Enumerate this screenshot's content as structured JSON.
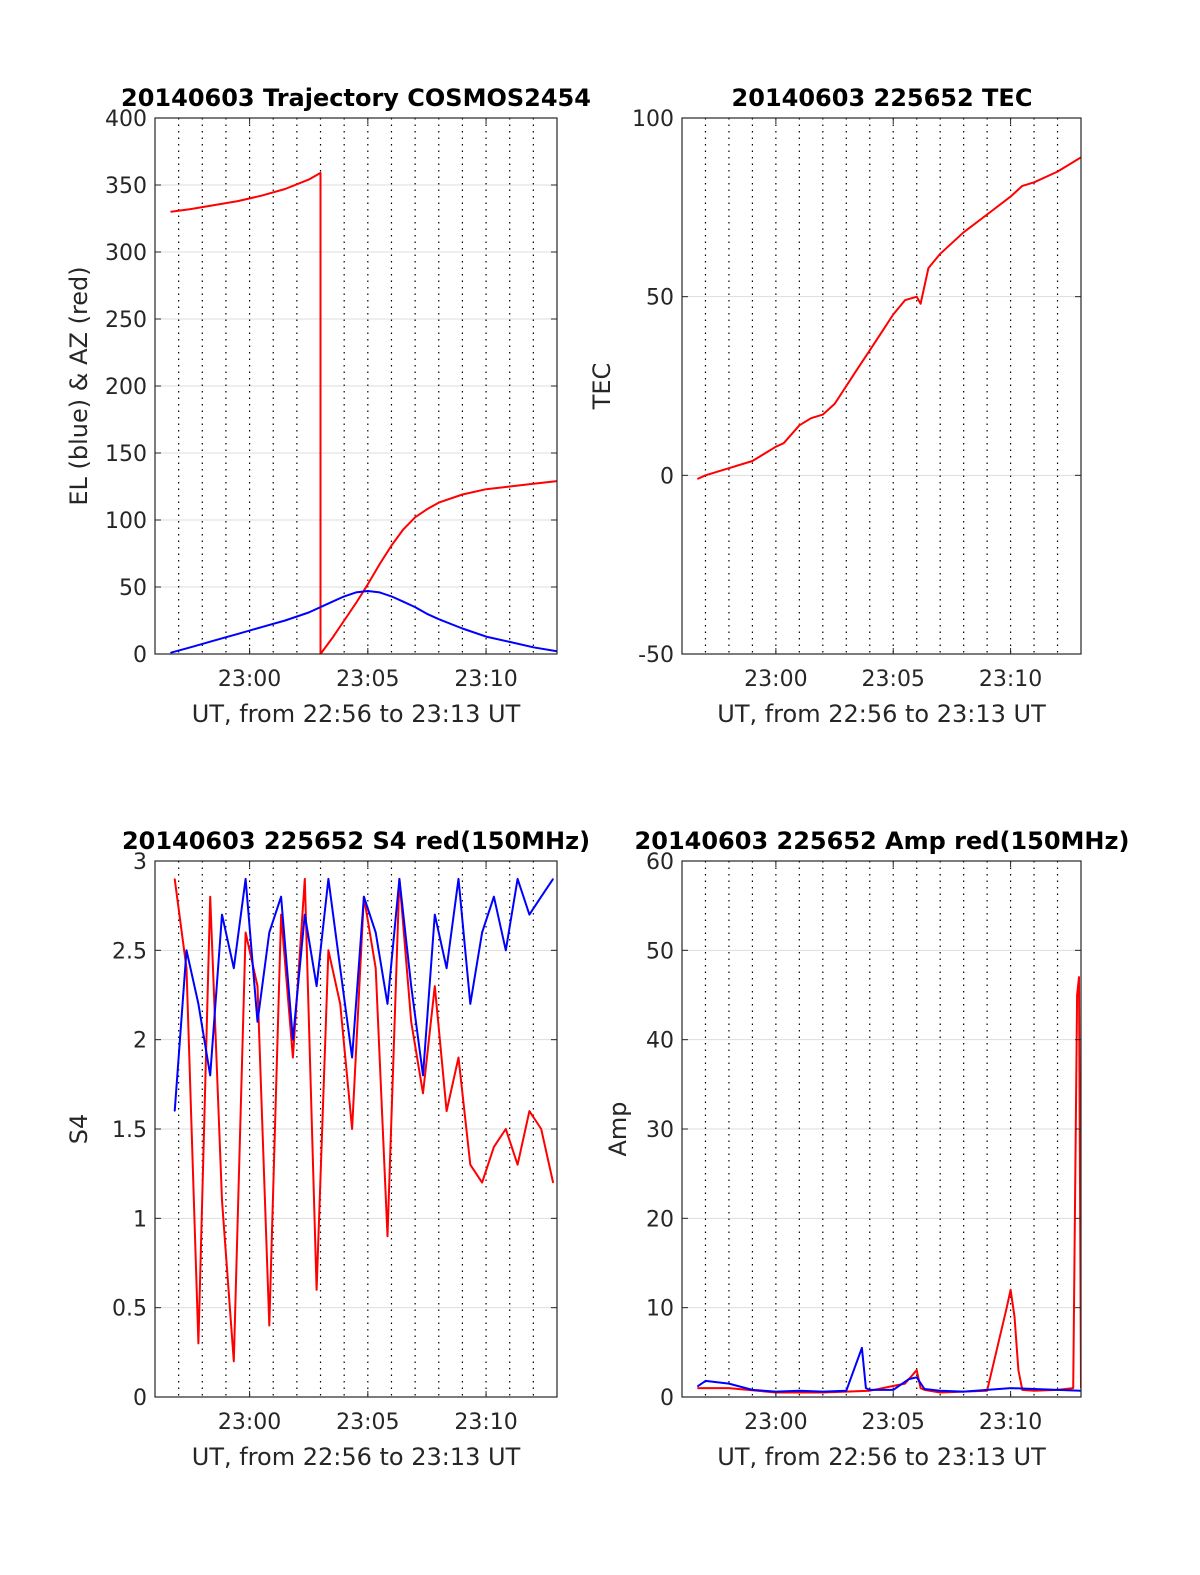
{
  "colors": {
    "el": "#0000ff",
    "az": "#ff0000",
    "grid": "#dddddd",
    "vgrid": "#000000",
    "axis": "#262626"
  },
  "chart_data": [
    {
      "type": "line",
      "title": "20140603 Trajectory COSMOS2454",
      "xlabel": "UT, from 22:56 to 23:13 UT",
      "ylabel": "EL (blue) & AZ (red)",
      "xlim": [
        "22:56:00",
        "23:13:00"
      ],
      "ylim": [
        0,
        400
      ],
      "yticks": [
        0,
        50,
        100,
        150,
        200,
        250,
        300,
        350,
        400
      ],
      "xticks": [
        "23:00",
        "23:05",
        "23:10"
      ],
      "grid": "dotted vertical every minute, light horizontal",
      "series": [
        {
          "color": "red",
          "x": [
            "22:56:40",
            "22:57:30",
            "22:58:30",
            "22:59:30",
            "23:00:30",
            "23:01:30",
            "23:02:30",
            "23:03:00",
            "23:03:00",
            "23:03:30",
            "23:04:00",
            "23:04:30",
            "23:05:00",
            "23:05:30",
            "23:06:00",
            "23:06:30",
            "23:07:00",
            "23:07:30",
            "23:08:00",
            "23:09:00",
            "23:10:00",
            "23:11:00",
            "23:12:00",
            "23:13:00"
          ],
          "values": [
            330,
            332,
            335,
            338,
            342,
            347,
            354,
            359,
            0,
            12,
            25,
            38,
            52,
            67,
            81,
            93,
            102,
            108,
            113,
            119,
            123,
            125,
            127,
            129
          ]
        },
        {
          "color": "blue",
          "x": [
            "22:56:40",
            "22:57:30",
            "22:58:30",
            "22:59:30",
            "23:00:30",
            "23:01:30",
            "23:02:30",
            "23:03:30",
            "23:04:00",
            "23:04:30",
            "23:05:00",
            "23:05:30",
            "23:06:00",
            "23:06:30",
            "23:07:00",
            "23:07:30",
            "23:08:00",
            "23:09:00",
            "23:10:00",
            "23:11:00",
            "23:12:00",
            "23:13:00"
          ],
          "values": [
            1,
            5,
            10,
            15,
            20,
            25,
            31,
            39,
            43,
            46,
            47,
            46,
            43,
            39,
            35,
            30,
            26,
            19,
            13,
            9,
            5,
            2
          ]
        }
      ]
    },
    {
      "type": "line",
      "title": "20140603 225652 TEC",
      "xlabel": "UT, from 22:56 to 23:13 UT",
      "ylabel": "TEC",
      "xlim": [
        "22:56:00",
        "23:13:00"
      ],
      "ylim": [
        -50,
        100
      ],
      "yticks": [
        -50,
        0,
        50,
        100
      ],
      "xticks": [
        "23:00",
        "23:05",
        "23:10"
      ],
      "grid": "dotted vertical every minute, light horizontal",
      "series": [
        {
          "color": "red",
          "x": [
            "22:56:40",
            "22:57:00",
            "22:58:00",
            "22:59:00",
            "22:59:30",
            "23:00:00",
            "23:00:20",
            "23:01:00",
            "23:01:30",
            "23:02:00",
            "23:02:30",
            "23:03:00",
            "23:03:30",
            "23:04:00",
            "23:04:30",
            "23:05:00",
            "23:05:30",
            "23:06:00",
            "23:06:10",
            "23:06:30",
            "23:07:00",
            "23:08:00",
            "23:09:00",
            "23:10:00",
            "23:10:30",
            "23:11:00",
            "23:12:00",
            "23:13:00"
          ],
          "values": [
            -1,
            0,
            2,
            4,
            6,
            8,
            9,
            14,
            16,
            17,
            20,
            25,
            30,
            35,
            40,
            45,
            49,
            50,
            48,
            58,
            62,
            68,
            73,
            78,
            81,
            82,
            85,
            89
          ]
        }
      ]
    },
    {
      "type": "line",
      "title": "20140603 225652 S4 red(150MHz)",
      "xlabel": "UT, from 22:56 to 23:13 UT",
      "ylabel": "S4",
      "xlim": [
        "22:56:00",
        "23:13:00"
      ],
      "ylim": [
        0,
        3
      ],
      "yticks": [
        0,
        0.5,
        1,
        1.5,
        2,
        2.5,
        3
      ],
      "xticks": [
        "23:00",
        "23:05",
        "23:10"
      ],
      "grid": "dotted vertical every minute, light horizontal",
      "series": [
        {
          "color": "red",
          "x": [
            "22:56:50",
            "22:57:20",
            "22:57:50",
            "22:58:20",
            "22:58:50",
            "22:59:20",
            "22:59:50",
            "23:00:20",
            "23:00:50",
            "23:01:20",
            "23:01:50",
            "23:02:20",
            "23:02:50",
            "23:03:20",
            "23:03:50",
            "23:04:20",
            "23:04:50",
            "23:05:20",
            "23:05:50",
            "23:06:20",
            "23:06:50",
            "23:07:20",
            "23:07:50",
            "23:08:20",
            "23:08:50",
            "23:09:20",
            "23:09:50",
            "23:10:20",
            "23:10:50",
            "23:11:20",
            "23:11:50",
            "23:12:20",
            "23:12:50"
          ],
          "values": [
            2.9,
            2.4,
            0.3,
            2.8,
            1.1,
            0.2,
            2.6,
            2.3,
            0.4,
            2.7,
            1.9,
            2.9,
            0.6,
            2.5,
            2.2,
            1.5,
            2.8,
            2.4,
            0.9,
            2.9,
            2.1,
            1.7,
            2.3,
            1.6,
            1.9,
            1.3,
            1.2,
            1.4,
            1.5,
            1.3,
            1.6,
            1.5,
            1.2
          ]
        },
        {
          "color": "blue",
          "x": [
            "22:56:50",
            "22:57:20",
            "22:57:50",
            "22:58:20",
            "22:58:50",
            "22:59:20",
            "22:59:50",
            "23:00:20",
            "23:00:50",
            "23:01:20",
            "23:01:50",
            "23:02:20",
            "23:02:50",
            "23:03:20",
            "23:03:50",
            "23:04:20",
            "23:04:50",
            "23:05:20",
            "23:05:50",
            "23:06:20",
            "23:06:50",
            "23:07:20",
            "23:07:50",
            "23:08:20",
            "23:08:50",
            "23:09:20",
            "23:09:50",
            "23:10:20",
            "23:10:50",
            "23:11:20",
            "23:11:50",
            "23:12:20",
            "23:12:50"
          ],
          "values": [
            1.6,
            2.5,
            2.2,
            1.8,
            2.7,
            2.4,
            2.9,
            2.1,
            2.6,
            2.8,
            2.0,
            2.7,
            2.3,
            2.9,
            2.4,
            1.9,
            2.8,
            2.6,
            2.2,
            2.9,
            2.3,
            1.8,
            2.7,
            2.4,
            2.9,
            2.2,
            2.6,
            2.8,
            2.5,
            2.9,
            2.7,
            2.8,
            2.9
          ]
        }
      ]
    },
    {
      "type": "line",
      "title": "20140603 225652 Amp red(150MHz)",
      "xlabel": "UT, from 22:56 to 23:13 UT",
      "ylabel": "Amp",
      "xlim": [
        "22:56:00",
        "23:13:00"
      ],
      "ylim": [
        0,
        60
      ],
      "yticks": [
        0,
        10,
        20,
        30,
        40,
        50,
        60
      ],
      "xticks": [
        "23:00",
        "23:05",
        "23:10"
      ],
      "grid": "dotted vertical every minute, light horizontal",
      "series": [
        {
          "color": "red",
          "x": [
            "22:56:40",
            "22:58:00",
            "23:00:00",
            "23:02:00",
            "23:04:00",
            "23:05:30",
            "23:06:00",
            "23:06:10",
            "23:06:20",
            "23:07:00",
            "23:08:00",
            "23:09:00",
            "23:09:50",
            "23:10:00",
            "23:10:10",
            "23:10:20",
            "23:10:30",
            "23:11:00",
            "23:12:00",
            "23:12:40",
            "23:12:50",
            "23:12:55",
            "23:13:00"
          ],
          "values": [
            1,
            1,
            0.5,
            0.5,
            0.7,
            1.5,
            3,
            1,
            0.8,
            0.5,
            0.6,
            0.7,
            10,
            12,
            9,
            3,
            0.8,
            0.7,
            0.8,
            1,
            45,
            47,
            1
          ]
        },
        {
          "color": "blue",
          "x": [
            "22:56:40",
            "22:57:00",
            "22:58:00",
            "22:59:00",
            "23:00:00",
            "23:01:00",
            "23:02:00",
            "23:03:00",
            "23:03:40",
            "23:03:50",
            "23:04:00",
            "23:05:00",
            "23:05:40",
            "23:06:00",
            "23:06:20",
            "23:07:00",
            "23:08:00",
            "23:09:00",
            "23:10:00",
            "23:11:00",
            "23:12:00",
            "23:13:00"
          ],
          "values": [
            1.2,
            1.8,
            1.5,
            0.8,
            0.6,
            0.7,
            0.6,
            0.7,
            5.5,
            1,
            0.8,
            0.8,
            2,
            2.2,
            0.9,
            0.7,
            0.6,
            0.8,
            1,
            0.9,
            0.8,
            0.7
          ]
        }
      ]
    }
  ]
}
